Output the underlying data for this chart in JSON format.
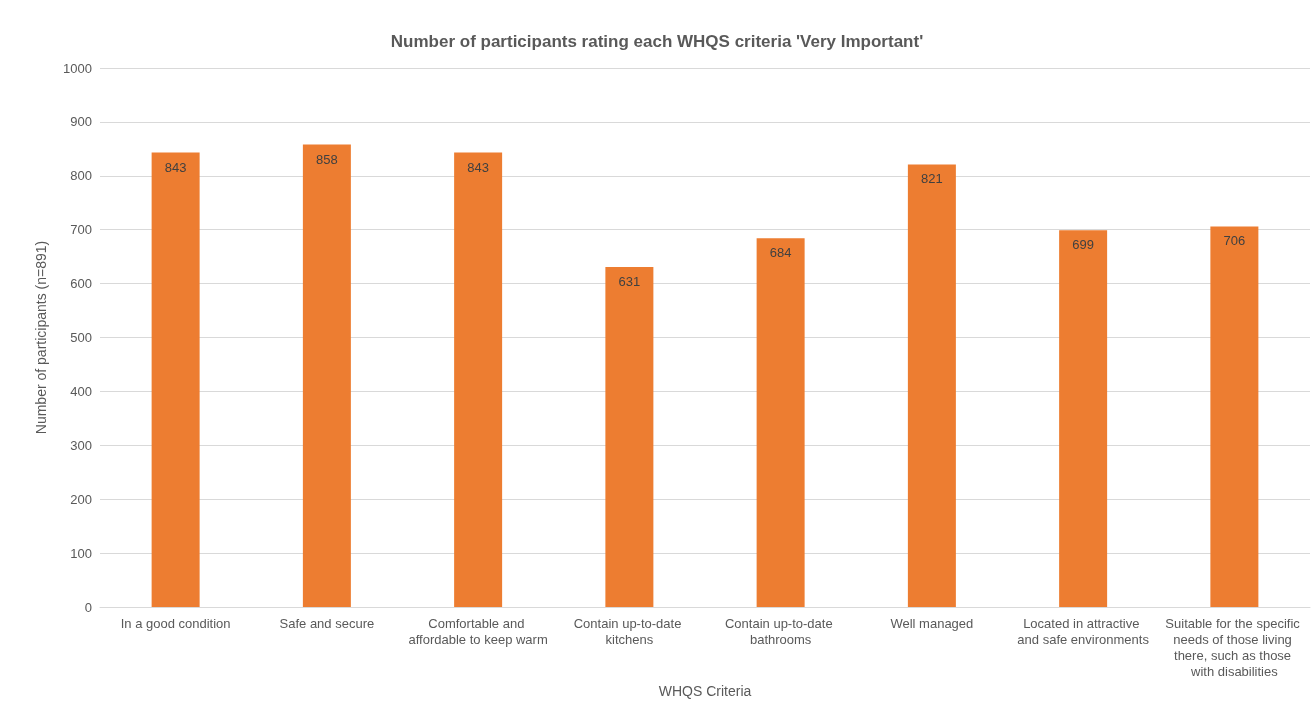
{
  "chart_data": {
    "type": "bar",
    "title": "Number of participants rating each WHQS criteria 'Very Important'",
    "xlabel": "WHQS Criteria",
    "ylabel": "Number of participants (n=891)",
    "categories": [
      "In a good condition",
      "Safe and secure",
      "Comfortable and affordable to keep warm",
      "Contain up-to-date kitchens",
      "Contain up-to-date bathrooms",
      "Well managed",
      "Located in attractive and safe environments",
      "Suitable for the specific needs of those living there, such as those with disabilities"
    ],
    "values": [
      843,
      858,
      843,
      631,
      684,
      821,
      699,
      706
    ],
    "color": "#ed7d31",
    "ylim": [
      0,
      1000
    ],
    "yticks": [
      0,
      100,
      200,
      300,
      400,
      500,
      600,
      700,
      800,
      900,
      1000
    ],
    "grid": "y",
    "data_labels": true
  }
}
